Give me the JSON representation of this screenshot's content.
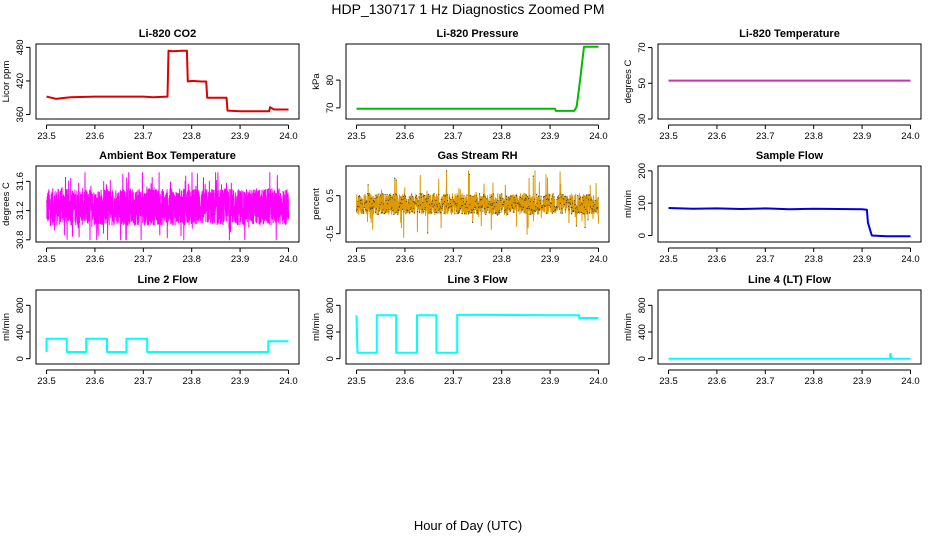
{
  "figure": {
    "title": "HDP_130717  1 Hz Diagnostics Zoomed PM",
    "xlabel": "Hour of Day (UTC)"
  },
  "chart_data": [
    {
      "type": "line",
      "title": "Li-820 CO2",
      "xlabel": "",
      "ylabel": "Licor ppm",
      "color": "#dd0000",
      "xlim": [
        23.5,
        24.0
      ],
      "ylim": [
        352,
        486
      ],
      "xticks": [
        23.5,
        23.6,
        23.7,
        23.8,
        23.9,
        24.0
      ],
      "yticks": [
        360,
        420,
        480
      ],
      "series": [
        {
          "x": [
            23.5,
            23.51,
            23.52,
            23.53,
            23.55,
            23.6,
            23.65,
            23.7,
            23.72,
            23.75,
            23.752,
            23.76,
            23.78,
            23.79,
            23.792,
            23.8,
            23.82,
            23.83,
            23.832,
            23.86,
            23.872,
            23.874,
            23.9,
            23.95,
            23.96,
            23.962,
            23.97,
            24.0
          ],
          "y": [
            392,
            390,
            388,
            389,
            391,
            392,
            392,
            392,
            391,
            392,
            474,
            473,
            474,
            474,
            419,
            420,
            419,
            419,
            390,
            390,
            390,
            367,
            366,
            366,
            366,
            373,
            369,
            369
          ]
        }
      ]
    },
    {
      "type": "line",
      "title": "Li-820 Pressure",
      "xlabel": "",
      "ylabel": "kPa",
      "color": "#00bb00",
      "xlim": [
        23.5,
        24.0
      ],
      "ylim": [
        66,
        93
      ],
      "xticks": [
        23.5,
        23.6,
        23.7,
        23.8,
        23.9,
        24.0
      ],
      "yticks": [
        70,
        80
      ],
      "series": [
        {
          "x": [
            23.5,
            23.6,
            23.7,
            23.8,
            23.88,
            23.91,
            23.912,
            23.95,
            23.955,
            23.962,
            23.968,
            23.97,
            23.98,
            24.0
          ],
          "y": [
            69.7,
            69.7,
            69.7,
            69.7,
            69.7,
            69.7,
            68.9,
            68.9,
            70.5,
            80,
            89,
            92,
            92,
            92
          ]
        }
      ]
    },
    {
      "type": "line",
      "title": "Li-820 Temperature",
      "xlabel": "",
      "ylabel": "degrees C",
      "color": "#cc33aa",
      "xlim": [
        23.5,
        24.0
      ],
      "ylim": [
        30,
        72
      ],
      "xticks": [
        23.5,
        23.6,
        23.7,
        23.8,
        23.9,
        24.0
      ],
      "yticks": [
        30,
        50,
        70
      ],
      "series": [
        {
          "x": [
            23.5,
            24.0
          ],
          "y": [
            51.5,
            51.5
          ]
        }
      ]
    },
    {
      "type": "line",
      "title": "Ambient Box Temperature",
      "xlabel": "",
      "ylabel": "degrees C",
      "color": "#ff00ff",
      "xlim": [
        23.5,
        24.0
      ],
      "ylim": [
        30.77,
        31.81
      ],
      "xticks": [
        23.5,
        23.6,
        23.7,
        23.8,
        23.9,
        24.0
      ],
      "yticks": [
        30.8,
        31.2,
        31.6
      ],
      "noise": {
        "mean": 31.25,
        "range": [
          30.8,
          31.72
        ],
        "n": 1800,
        "kind": "fast"
      }
    },
    {
      "type": "line",
      "title": "Gas Stream RH",
      "xlabel": "",
      "ylabel": "percent",
      "color": "#dd9900",
      "xlim": [
        23.5,
        24.0
      ],
      "ylim": [
        -0.72,
        1.28
      ],
      "xticks": [
        23.5,
        23.6,
        23.7,
        23.8,
        23.9,
        24.0
      ],
      "yticks": [
        -0.5,
        0.5
      ],
      "noise": {
        "mean": 0.28,
        "range": [
          -0.6,
          1.15
        ],
        "n": 1500,
        "kind": "rh"
      }
    },
    {
      "type": "line",
      "title": "Sample Flow",
      "xlabel": "",
      "ylabel": "ml/min",
      "color": "#0000dd",
      "xlim": [
        23.5,
        24.0
      ],
      "ylim": [
        -20,
        215
      ],
      "xticks": [
        23.5,
        23.6,
        23.7,
        23.8,
        23.9,
        24.0
      ],
      "yticks": [
        0,
        100,
        200
      ],
      "series": [
        {
          "x": [
            23.5,
            23.55,
            23.6,
            23.65,
            23.7,
            23.75,
            23.8,
            23.85,
            23.9,
            23.91,
            23.912,
            23.92,
            23.95,
            24.0
          ],
          "y": [
            85,
            83,
            84,
            82,
            84,
            81,
            83,
            82,
            81,
            80,
            40,
            0,
            -2,
            -2
          ]
        }
      ]
    },
    {
      "type": "line",
      "title": "Line 2 Flow",
      "xlabel": "",
      "ylabel": "ml/min",
      "color": "#00ffff",
      "xlim": [
        23.5,
        24.0
      ],
      "ylim": [
        -80,
        1030
      ],
      "xticks": [
        23.5,
        23.6,
        23.7,
        23.8,
        23.9,
        24.0
      ],
      "yticks": [
        0,
        400,
        800
      ],
      "series": [
        {
          "x": [
            23.5,
            23.5,
            23.542,
            23.542,
            23.582,
            23.582,
            23.625,
            23.625,
            23.665,
            23.665,
            23.708,
            23.708,
            23.958,
            23.958,
            24.0
          ],
          "y": [
            100,
            300,
            300,
            100,
            100,
            300,
            300,
            100,
            100,
            300,
            300,
            100,
            100,
            260,
            260
          ]
        }
      ]
    },
    {
      "type": "line",
      "title": "Line 3 Flow",
      "xlabel": "",
      "ylabel": "ml/min",
      "color": "#00ffff",
      "xlim": [
        23.5,
        24.0
      ],
      "ylim": [
        -80,
        1030
      ],
      "xticks": [
        23.5,
        23.6,
        23.7,
        23.8,
        23.9,
        24.0
      ],
      "yticks": [
        0,
        400,
        800
      ],
      "series": [
        {
          "x": [
            23.5,
            23.5,
            23.502,
            23.502,
            23.542,
            23.542,
            23.582,
            23.582,
            23.625,
            23.625,
            23.665,
            23.665,
            23.708,
            23.708,
            23.9,
            23.96,
            23.96,
            24.0
          ],
          "y": [
            650,
            650,
            90,
            90,
            90,
            650,
            650,
            90,
            90,
            650,
            650,
            90,
            90,
            660,
            650,
            650,
            610,
            610
          ]
        }
      ]
    },
    {
      "type": "line",
      "title": "Line 4 (LT) Flow",
      "xlabel": "",
      "ylabel": "ml/min",
      "color": "#00ffff",
      "xlim": [
        23.5,
        24.0
      ],
      "ylim": [
        -80,
        1030
      ],
      "xticks": [
        23.5,
        23.6,
        23.7,
        23.8,
        23.9,
        24.0
      ],
      "yticks": [
        0,
        400,
        800
      ],
      "series": [
        {
          "x": [
            23.5,
            23.958,
            23.958,
            23.959,
            23.959,
            23.961,
            23.961,
            24.0
          ],
          "y": [
            0,
            0,
            70,
            70,
            20,
            20,
            0,
            0
          ]
        }
      ]
    }
  ]
}
